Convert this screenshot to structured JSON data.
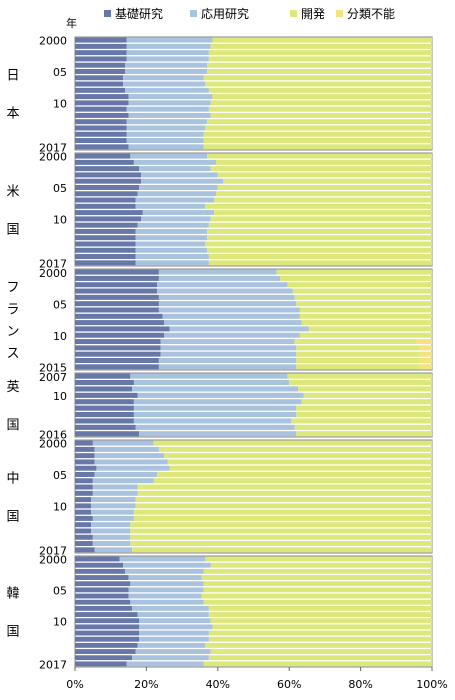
{
  "chart_data": {
    "type": "bar",
    "orientation": "horizontal",
    "stacked": true,
    "year_axis_label": "年",
    "xlim": [
      0,
      100
    ],
    "x_ticks": [
      "0%",
      "20%",
      "40%",
      "60%",
      "80%",
      "100%"
    ],
    "legend": {
      "placement": "top",
      "items": [
        {
          "name": "基礎研究",
          "color": "#6677a8"
        },
        {
          "name": "応用研究",
          "color": "#a9c2de"
        },
        {
          "name": "開発",
          "color": "#dde87a"
        },
        {
          "name": "分類不能",
          "color": "#f5e37d"
        }
      ]
    },
    "panels": [
      {
        "country": "日本",
        "years": [
          2000,
          2001,
          2002,
          2003,
          2004,
          2005,
          2006,
          2007,
          2008,
          2009,
          2010,
          2011,
          2012,
          2013,
          2014,
          2015,
          2016,
          2017
        ],
        "year_labels": [
          "2000",
          "",
          "",
          "",
          "",
          "05",
          "",
          "",
          "",
          "",
          "10",
          "",
          "",
          "",
          "",
          "",
          "",
          "2017"
        ],
        "series": [
          {
            "name": "基礎研究",
            "values": [
              14.5,
              14.5,
              14.5,
              14.5,
              14.0,
              14.0,
              13.5,
              13.5,
              14.0,
              15.0,
              15.0,
              14.5,
              15.0,
              14.5,
              14.5,
              14.5,
              14.5,
              15.0
            ]
          },
          {
            "name": "応用研究",
            "values": [
              24.0,
              23.5,
              23.0,
              23.0,
              23.0,
              23.0,
              22.5,
              23.0,
              23.5,
              23.5,
              23.0,
              23.0,
              23.0,
              22.5,
              22.0,
              21.5,
              21.5,
              21.0
            ]
          },
          {
            "name": "開発",
            "values": [
              61.5,
              62.0,
              62.5,
              62.5,
              63.0,
              63.0,
              64.0,
              63.5,
              62.5,
              61.5,
              62.0,
              62.5,
              62.0,
              63.0,
              63.5,
              64.0,
              64.0,
              64.0
            ]
          },
          {
            "name": "分類不能",
            "values": [
              0,
              0,
              0,
              0,
              0,
              0,
              0,
              0,
              0,
              0,
              0,
              0,
              0,
              0,
              0,
              0,
              0,
              0
            ]
          }
        ]
      },
      {
        "country": "米国",
        "years": [
          2000,
          2001,
          2002,
          2003,
          2004,
          2005,
          2006,
          2007,
          2008,
          2009,
          2010,
          2011,
          2012,
          2013,
          2014,
          2015,
          2016,
          2017
        ],
        "year_labels": [
          "2000",
          "",
          "",
          "",
          "",
          "05",
          "",
          "",
          "",
          "",
          "10",
          "",
          "",
          "",
          "",
          "",
          "",
          "2017"
        ],
        "series": [
          {
            "name": "基礎研究",
            "values": [
              15.5,
              16.5,
              18.0,
              18.5,
              18.5,
              18.0,
              17.5,
              17.0,
              17.0,
              19.0,
              18.5,
              17.5,
              17.0,
              17.0,
              17.0,
              17.0,
              17.0,
              17.0
            ]
          },
          {
            "name": "応用研究",
            "values": [
              21.5,
              23.0,
              20.0,
              21.5,
              23.0,
              22.0,
              22.0,
              22.0,
              19.5,
              20.0,
              19.5,
              20.0,
              20.0,
              20.0,
              19.5,
              20.0,
              20.5,
              20.5
            ]
          },
          {
            "name": "開発",
            "values": [
              63.0,
              60.5,
              62.0,
              60.0,
              58.5,
              60.0,
              60.5,
              61.0,
              63.5,
              61.0,
              62.0,
              62.5,
              63.0,
              63.0,
              63.5,
              63.0,
              62.5,
              62.5
            ]
          },
          {
            "name": "分類不能",
            "values": [
              0,
              0,
              0,
              0,
              0,
              0,
              0,
              0,
              0,
              0,
              0,
              0,
              0,
              0,
              0,
              0,
              0,
              0
            ]
          }
        ]
      },
      {
        "country": "フランス",
        "years": [
          2000,
          2001,
          2002,
          2003,
          2004,
          2005,
          2006,
          2007,
          2008,
          2009,
          2010,
          2011,
          2012,
          2013,
          2014,
          2015
        ],
        "year_labels": [
          "2000",
          "",
          "",
          "",
          "",
          "05",
          "",
          "",
          "",
          "",
          "10",
          "",
          "",
          "",
          "",
          "2015"
        ],
        "series": [
          {
            "name": "基礎研究",
            "values": [
              23.5,
              23.5,
              23.0,
              23.0,
              23.5,
              23.5,
              23.5,
              24.5,
              25.0,
              26.5,
              25.0,
              24.0,
              24.0,
              24.0,
              23.5,
              23.5
            ]
          },
          {
            "name": "応用研究",
            "values": [
              33.0,
              34.0,
              36.5,
              38.0,
              38.0,
              38.5,
              39.5,
              38.5,
              38.5,
              39.0,
              38.0,
              37.5,
              38.0,
              38.0,
              38.5,
              38.5
            ]
          },
          {
            "name": "開発",
            "values": [
              43.5,
              42.5,
              40.5,
              39.0,
              38.5,
              38.0,
              37.0,
              37.0,
              36.5,
              34.5,
              37.0,
              34.0,
              34.5,
              34.5,
              34.5,
              34.5
            ]
          },
          {
            "name": "分類不能",
            "values": [
              0,
              0,
              0,
              0,
              0,
              0,
              0,
              0,
              0,
              0,
              0,
              4.5,
              3.5,
              3.5,
              3.5,
              3.5
            ]
          }
        ]
      },
      {
        "country": "英国",
        "years": [
          2007,
          2008,
          2009,
          2010,
          2011,
          2012,
          2013,
          2014,
          2015,
          2016
        ],
        "year_labels": [
          "2007",
          "",
          "",
          "10",
          "",
          "",
          "",
          "",
          "",
          "2016"
        ],
        "series": [
          {
            "name": "基礎研究",
            "values": [
              15.5,
              16.5,
              16.0,
              17.5,
              16.5,
              16.5,
              16.5,
              16.5,
              17.0,
              18.0
            ]
          },
          {
            "name": "応用研究",
            "values": [
              44.0,
              43.5,
              46.5,
              46.5,
              47.0,
              45.5,
              45.5,
              44.0,
              44.5,
              44.0
            ]
          },
          {
            "name": "開発",
            "values": [
              40.5,
              40.0,
              37.5,
              36.0,
              36.5,
              38.0,
              38.0,
              39.5,
              38.5,
              38.0
            ]
          },
          {
            "name": "分類不能",
            "values": [
              0,
              0,
              0,
              0,
              0,
              0,
              0,
              0,
              0,
              0
            ]
          }
        ]
      },
      {
        "country": "中国",
        "years": [
          2000,
          2001,
          2002,
          2003,
          2004,
          2005,
          2006,
          2007,
          2008,
          2009,
          2010,
          2011,
          2012,
          2013,
          2014,
          2015,
          2016,
          2017
        ],
        "year_labels": [
          "2000",
          "",
          "",
          "",
          "",
          "05",
          "",
          "",
          "",
          "",
          "10",
          "",
          "",
          "",
          "",
          "",
          "",
          "2017"
        ],
        "series": [
          {
            "name": "基礎研究",
            "values": [
              5.0,
              5.5,
              5.5,
              5.5,
              6.0,
              5.5,
              5.0,
              5.0,
              5.0,
              4.5,
              4.5,
              4.5,
              5.0,
              4.5,
              4.5,
              5.0,
              5.0,
              5.5
            ]
          },
          {
            "name": "応用研究",
            "values": [
              17.0,
              18.0,
              19.5,
              20.5,
              20.5,
              17.5,
              17.0,
              12.5,
              12.5,
              12.5,
              12.5,
              12.0,
              11.5,
              11.0,
              11.0,
              10.5,
              10.5,
              10.5
            ]
          },
          {
            "name": "開発",
            "values": [
              78.0,
              76.5,
              75.0,
              74.0,
              73.5,
              77.0,
              78.0,
              82.5,
              82.5,
              83.0,
              83.0,
              83.5,
              83.5,
              84.5,
              84.5,
              84.5,
              84.5,
              84.0
            ]
          },
          {
            "name": "分類不能",
            "values": [
              0,
              0,
              0,
              0,
              0,
              0,
              0,
              0,
              0,
              0,
              0,
              0,
              0,
              0,
              0,
              0,
              0,
              0
            ]
          }
        ]
      },
      {
        "country": "韓国",
        "years": [
          2000,
          2001,
          2002,
          2003,
          2004,
          2005,
          2006,
          2007,
          2008,
          2009,
          2010,
          2011,
          2012,
          2013,
          2014,
          2015,
          2016,
          2017
        ],
        "year_labels": [
          "2000",
          "",
          "",
          "",
          "",
          "05",
          "",
          "",
          "",
          "",
          "10",
          "",
          "",
          "",
          "",
          "",
          "",
          "2017"
        ],
        "series": [
          {
            "name": "基礎研究",
            "values": [
              12.5,
              13.5,
              14.0,
              15.0,
              15.5,
              15.0,
              15.0,
              15.5,
              16.0,
              17.5,
              18.0,
              18.0,
              18.0,
              18.0,
              17.5,
              17.0,
              16.0,
              14.5
            ]
          },
          {
            "name": "応用研究",
            "values": [
              24.0,
              24.5,
              22.0,
              20.5,
              20.5,
              21.0,
              20.5,
              20.5,
              21.5,
              20.0,
              20.0,
              20.5,
              19.5,
              19.5,
              19.0,
              21.0,
              21.5,
              21.5
            ]
          },
          {
            "name": "開発",
            "values": [
              63.5,
              62.0,
              64.0,
              64.5,
              64.0,
              64.0,
              64.5,
              64.0,
              62.5,
              62.5,
              62.0,
              61.5,
              62.5,
              62.5,
              63.5,
              62.0,
              62.5,
              64.0
            ]
          },
          {
            "name": "分類不能",
            "values": [
              0,
              0,
              0,
              0,
              0,
              0,
              0,
              0,
              0,
              0,
              0,
              0,
              0,
              0,
              0,
              0,
              0,
              0
            ]
          }
        ]
      }
    ]
  }
}
